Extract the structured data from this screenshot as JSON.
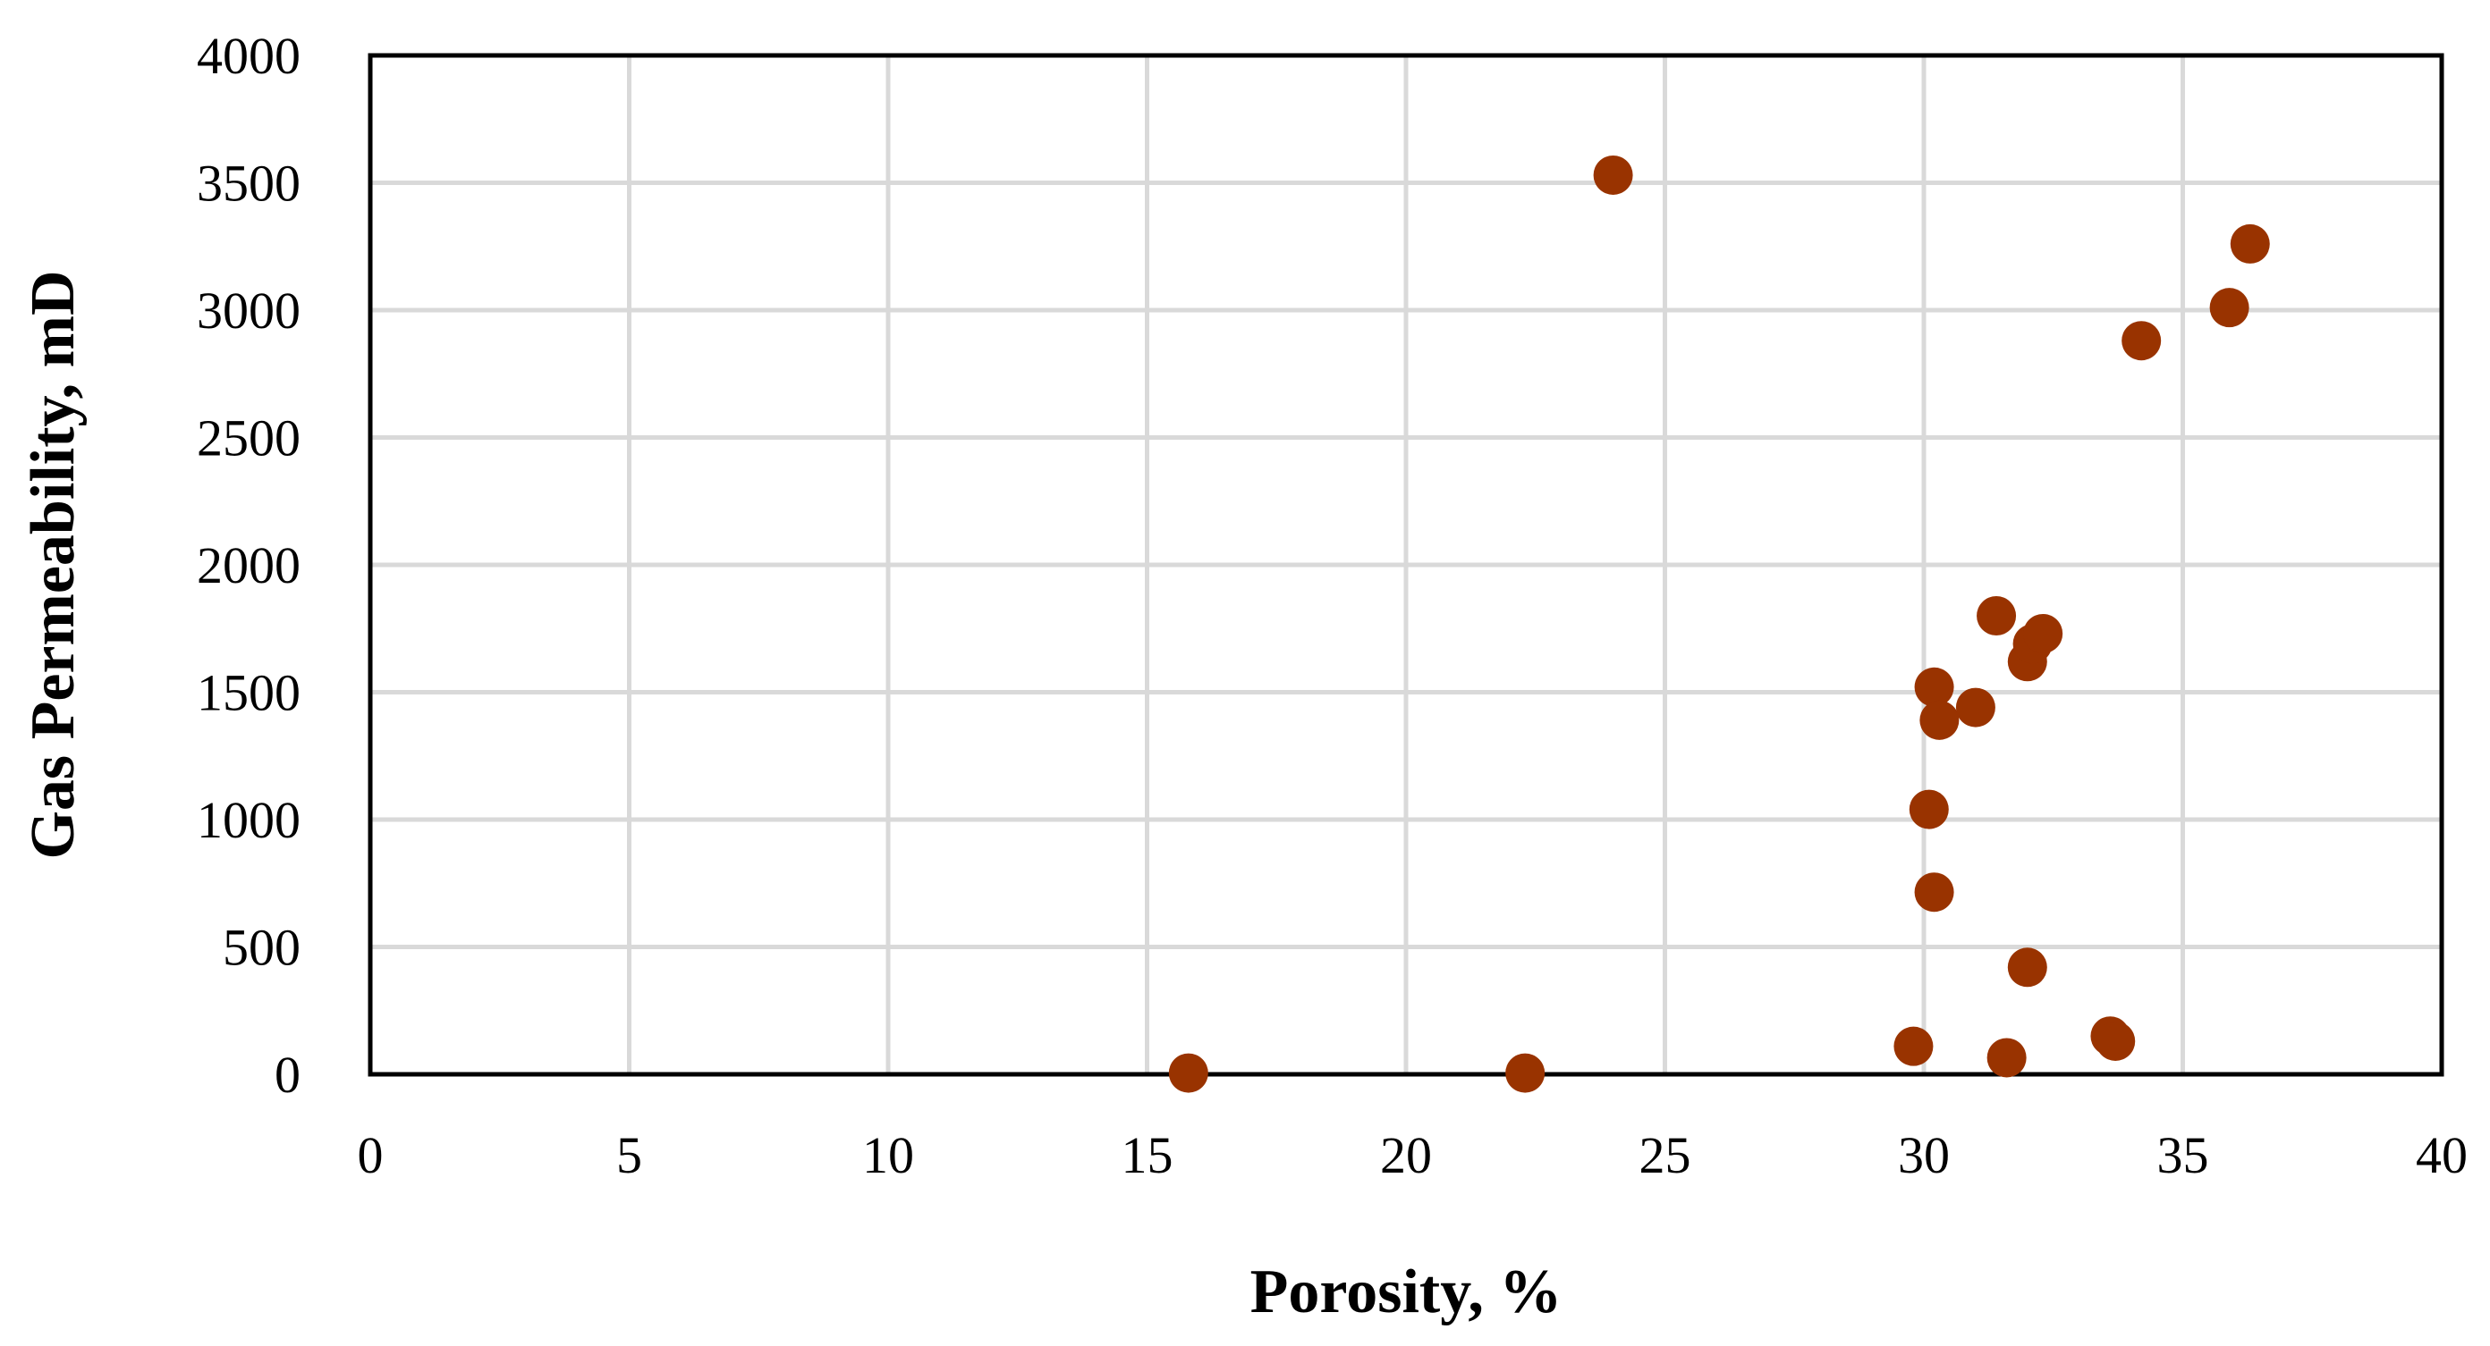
{
  "chart_data": {
    "type": "scatter",
    "xlabel": "Porosity, %",
    "ylabel": "Gas Permeability, mD",
    "xlim": [
      0,
      40
    ],
    "ylim": [
      0,
      4000
    ],
    "x_ticks": [
      0,
      5,
      10,
      15,
      20,
      25,
      30,
      35,
      40
    ],
    "y_ticks": [
      0,
      500,
      1000,
      1500,
      2000,
      2500,
      3000,
      3500,
      4000
    ],
    "grid": true,
    "marker_color": "#993300",
    "points": [
      {
        "x": 15.8,
        "y": 5
      },
      {
        "x": 22.3,
        "y": 5
      },
      {
        "x": 24.0,
        "y": 3530
      },
      {
        "x": 29.8,
        "y": 110
      },
      {
        "x": 30.1,
        "y": 1040
      },
      {
        "x": 30.2,
        "y": 1520
      },
      {
        "x": 30.2,
        "y": 715
      },
      {
        "x": 30.3,
        "y": 1390
      },
      {
        "x": 31.0,
        "y": 1440
      },
      {
        "x": 31.4,
        "y": 1800
      },
      {
        "x": 31.6,
        "y": 65
      },
      {
        "x": 32.0,
        "y": 420
      },
      {
        "x": 32.0,
        "y": 1620
      },
      {
        "x": 32.1,
        "y": 1690
      },
      {
        "x": 32.3,
        "y": 1730
      },
      {
        "x": 33.6,
        "y": 150
      },
      {
        "x": 33.7,
        "y": 130
      },
      {
        "x": 34.2,
        "y": 2880
      },
      {
        "x": 35.9,
        "y": 3010
      },
      {
        "x": 36.3,
        "y": 3260
      }
    ]
  }
}
